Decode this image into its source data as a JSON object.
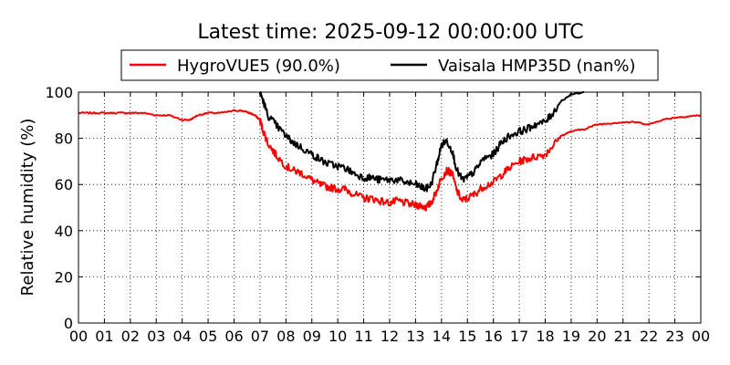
{
  "chart_data": {
    "type": "line",
    "title": "Latest time: 2025-09-12 00:00:00 UTC",
    "ylabel": "Relative humidity (%)",
    "xlabel": "",
    "ylim": [
      0,
      100
    ],
    "xlim": [
      0,
      24
    ],
    "grid": true,
    "legend_placement": "top",
    "x_ticks": [
      "00",
      "01",
      "02",
      "03",
      "04",
      "05",
      "06",
      "07",
      "08",
      "09",
      "10",
      "11",
      "12",
      "13",
      "14",
      "15",
      "16",
      "17",
      "18",
      "19",
      "20",
      "21",
      "22",
      "23",
      "00"
    ],
    "y_ticks": [
      "0",
      "20",
      "40",
      "60",
      "80",
      "100"
    ],
    "series": [
      {
        "name": "HygroVUE5 (90.0%)",
        "color": "#ff0000",
        "x": [
          0,
          0.5,
          1,
          1.5,
          2,
          2.5,
          3,
          3.5,
          4,
          4.3,
          4.6,
          5,
          5.5,
          6,
          6.3,
          6.6,
          6.8,
          7,
          7.1,
          7.3,
          7.6,
          8,
          8.3,
          8.6,
          9,
          9.3,
          9.6,
          10,
          10.3,
          10.6,
          11,
          11.3,
          11.6,
          12,
          12.3,
          12.6,
          13,
          13.2,
          13.4,
          13.6,
          13.8,
          14,
          14.2,
          14.4,
          14.6,
          14.8,
          15,
          15.3,
          15.6,
          16,
          16.3,
          16.6,
          17,
          17.3,
          17.6,
          18,
          18.3,
          18.6,
          19,
          19.5,
          20,
          20.5,
          21,
          21.5,
          22,
          22.5,
          23,
          23.5,
          24
        ],
        "values": [
          91,
          91,
          91,
          91,
          91,
          91,
          90,
          90,
          88,
          88,
          90,
          91,
          91,
          92,
          92,
          91,
          90,
          88,
          84,
          78,
          73,
          68,
          66,
          65,
          62,
          60,
          59,
          58,
          58,
          56,
          54,
          54,
          53,
          52,
          53,
          52,
          51,
          51,
          50,
          52,
          57,
          63,
          66,
          65,
          57,
          53,
          54,
          56,
          59,
          61,
          64,
          67,
          70,
          71,
          72,
          73,
          77,
          81,
          83,
          84,
          86,
          86.5,
          87,
          87,
          86,
          88,
          89,
          89.5,
          90
        ]
      },
      {
        "name": "Vaisala HMP35D (nan%)",
        "color": "#000000",
        "x": [
          7,
          7.1,
          7.3,
          7.6,
          8,
          8.3,
          8.6,
          9,
          9.3,
          9.6,
          10,
          10.3,
          10.6,
          11,
          11.3,
          11.6,
          12,
          12.3,
          12.6,
          13,
          13.2,
          13.4,
          13.6,
          13.8,
          14,
          14.2,
          14.4,
          14.6,
          14.8,
          15,
          15.3,
          15.6,
          16,
          16.3,
          16.6,
          17,
          17.3,
          17.6,
          18,
          18.3,
          18.6,
          19,
          19.5
        ],
        "values": [
          100,
          97,
          90,
          86,
          81,
          78,
          76,
          73,
          71,
          69,
          68,
          67,
          65,
          63,
          63,
          62,
          62,
          62,
          61,
          60,
          59,
          58,
          60,
          68,
          77,
          79,
          75,
          66,
          62,
          63,
          66,
          71,
          73,
          78,
          81,
          83,
          84,
          86,
          87,
          91,
          96,
          99,
          100
        ]
      }
    ]
  }
}
